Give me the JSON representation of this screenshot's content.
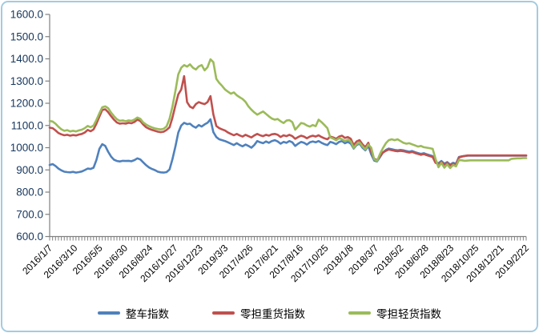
{
  "window": {
    "background": "#FFFFFF",
    "border_color": "#A5CBE0"
  },
  "chart_data": {
    "type": "line",
    "title": "",
    "grid": false,
    "legend_position": "bottom",
    "y_axis": {
      "min": 600,
      "max": 1600,
      "step": 100,
      "tick_labels": [
        "1600.0",
        "1500.0",
        "1400.0",
        "1300.0",
        "1200.0",
        "1100.0",
        "1000.0",
        "900.0",
        "800.0",
        "700.0",
        "600.0"
      ],
      "label_color": "#17375E",
      "axis_color": "#808080"
    },
    "x_axis": {
      "tick_labels": [
        "2016/1/7",
        "2016/3/10",
        "2016/5/5",
        "2016/6/30",
        "2016/8/24",
        "2016/10/27",
        "2016/12/23",
        "2019/3/3",
        "2017/4/26",
        "2017/6/21",
        "2017/8/16",
        "2017/10/25",
        "2018/1/8",
        "2018/3/7",
        "2018/5/2",
        "2018/6/28",
        "2018/8/23",
        "2018/10/25",
        "2018/12/21",
        "2019/2/22"
      ],
      "label_rotation": -45,
      "label_color": "#000000",
      "axis_color": "#808080"
    },
    "series": [
      {
        "name": "整车指数",
        "color": "#4F81BD",
        "values": [
          922,
          926,
          918,
          906,
          898,
          892,
          890,
          889,
          891,
          888,
          890,
          893,
          899,
          906,
          904,
          910,
          945,
          995,
          1016,
          1008,
          982,
          960,
          946,
          940,
          938,
          941,
          940,
          941,
          939,
          944,
          952,
          947,
          934,
          921,
          911,
          904,
          899,
          892,
          889,
          888,
          890,
          902,
          948,
          1005,
          1068,
          1100,
          1112,
          1106,
          1108,
          1097,
          1090,
          1102,
          1095,
          1105,
          1112,
          1128,
          1070,
          1048,
          1038,
          1034,
          1030,
          1024,
          1018,
          1012,
          1020,
          1012,
          1006,
          1014,
          1008,
          1000,
          1012,
          1030,
          1024,
          1020,
          1028,
          1022,
          1030,
          1034,
          1028,
          1018,
          1026,
          1022,
          1030,
          1024,
          1008,
          1018,
          1026,
          1022,
          1014,
          1024,
          1028,
          1024,
          1030,
          1022,
          1016,
          1012,
          1026,
          1022,
          1016,
          1026,
          1030,
          1020,
          1026,
          1018,
          996,
          1012,
          1018,
          1000,
          988,
          1008,
          970,
          942,
          938,
          958,
          978,
          990,
          996,
          993,
          990,
          988,
          990,
          988,
          985,
          982,
          985,
          980,
          976,
          972,
          975,
          970,
          966,
          962,
          936,
          930,
          940,
          928,
          935,
          924,
          932,
          928,
          958,
          961,
          963,
          964,
          964,
          964,
          964,
          964,
          964,
          964,
          964,
          964,
          964,
          964,
          964,
          964,
          964,
          964,
          964,
          964,
          964,
          964,
          964,
          964
        ]
      },
      {
        "name": "零担重货指数",
        "color": "#C0504D",
        "values": [
          1090,
          1088,
          1078,
          1066,
          1060,
          1056,
          1058,
          1054,
          1057,
          1055,
          1059,
          1062,
          1068,
          1080,
          1074,
          1082,
          1108,
          1140,
          1170,
          1173,
          1160,
          1142,
          1126,
          1113,
          1108,
          1110,
          1108,
          1112,
          1110,
          1116,
          1126,
          1120,
          1104,
          1092,
          1085,
          1080,
          1076,
          1072,
          1070,
          1072,
          1080,
          1092,
          1135,
          1190,
          1240,
          1262,
          1322,
          1205,
          1185,
          1178,
          1196,
          1205,
          1200,
          1196,
          1205,
          1232,
          1150,
          1098,
          1088,
          1082,
          1077,
          1068,
          1062,
          1056,
          1062,
          1055,
          1050,
          1058,
          1052,
          1046,
          1055,
          1062,
          1056,
          1052,
          1058,
          1054,
          1060,
          1062,
          1058,
          1048,
          1056,
          1052,
          1058,
          1052,
          1040,
          1048,
          1054,
          1050,
          1042,
          1050,
          1054,
          1050,
          1056,
          1048,
          1042,
          1038,
          1050,
          1046,
          1040,
          1050,
          1054,
          1044,
          1048,
          1040,
          1012,
          1028,
          1034,
          1015,
          1002,
          1022,
          982,
          950,
          944,
          962,
          978,
          986,
          992,
          989,
          986,
          984,
          986,
          984,
          981,
          978,
          981,
          976,
          972,
          968,
          971,
          966,
          962,
          958,
          932,
          926,
          936,
          924,
          931,
          920,
          928,
          924,
          956,
          960,
          963,
          965,
          965,
          965,
          965,
          965,
          965,
          965,
          965,
          965,
          965,
          965,
          965,
          965,
          965,
          965,
          965,
          965,
          965,
          965,
          965,
          965
        ]
      },
      {
        "name": "零担轻货指数",
        "color": "#9BBB59",
        "values": [
          1120,
          1118,
          1108,
          1094,
          1083,
          1076,
          1079,
          1073,
          1076,
          1073,
          1078,
          1081,
          1088,
          1098,
          1092,
          1100,
          1125,
          1155,
          1182,
          1186,
          1178,
          1158,
          1142,
          1128,
          1121,
          1123,
          1119,
          1123,
          1121,
          1127,
          1136,
          1130,
          1114,
          1104,
          1097,
          1091,
          1087,
          1084,
          1082,
          1085,
          1096,
          1130,
          1185,
          1255,
          1330,
          1360,
          1372,
          1365,
          1375,
          1360,
          1352,
          1366,
          1372,
          1348,
          1362,
          1398,
          1385,
          1310,
          1292,
          1278,
          1262,
          1252,
          1243,
          1249,
          1236,
          1227,
          1219,
          1206,
          1186,
          1171,
          1159,
          1149,
          1156,
          1163,
          1152,
          1141,
          1131,
          1126,
          1129,
          1119,
          1111,
          1122,
          1124,
          1115,
          1081,
          1096,
          1111,
          1108,
          1100,
          1095,
          1102,
          1097,
          1126,
          1115,
          1102,
          1088,
          1046,
          1041,
          1033,
          1043,
          1038,
          1030,
          1036,
          1028,
          999,
          1016,
          1023,
          1006,
          992,
          1014,
          1000,
          948,
          940,
          972,
          998,
          1020,
          1034,
          1038,
          1034,
          1038,
          1030,
          1022,
          1018,
          1020,
          1015,
          1010,
          1005,
          1008,
          1002,
          1000,
          998,
          995,
          950,
          912,
          932,
          910,
          925,
          908,
          922,
          916,
          945,
          943,
          941,
          942,
          943,
          943,
          943,
          943,
          943,
          943,
          943,
          943,
          943,
          943,
          943,
          943,
          943,
          943,
          950,
          951,
          952,
          952,
          953,
          953
        ]
      }
    ],
    "legend_entries": [
      "整车指数",
      "零担重货指数",
      "零担轻货指数"
    ]
  }
}
